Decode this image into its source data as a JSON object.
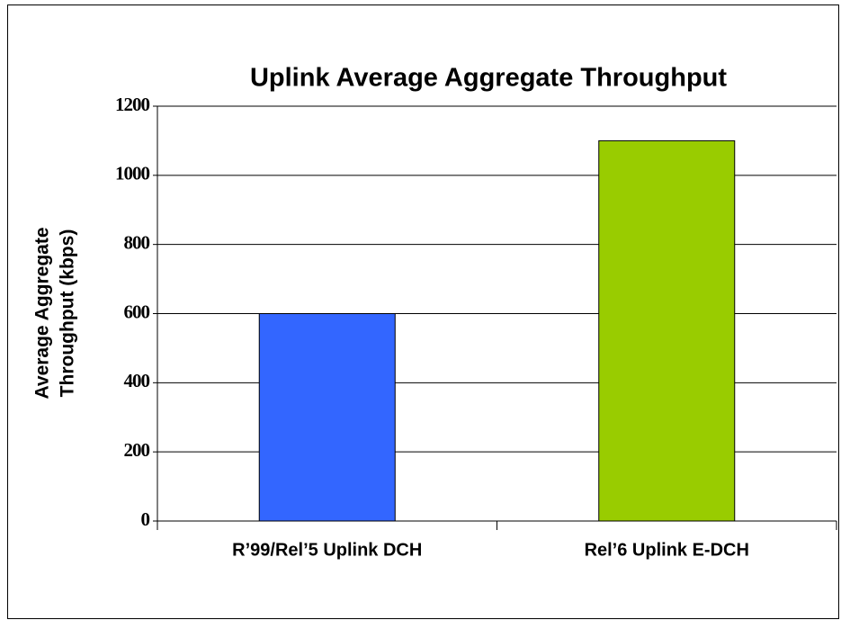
{
  "chart_data": {
    "type": "bar",
    "title": "Uplink Average Aggregate Throughput",
    "ylabel": [
      "Average Aggregate",
      "Throughput (kbps)"
    ],
    "categories": [
      "R’99/Rel’5 Uplink DCH",
      "Rel’6 Uplink E-DCH"
    ],
    "values": [
      600,
      1100
    ],
    "colors": [
      "#3366ff",
      "#99cc00"
    ],
    "ylim": [
      0,
      1200
    ],
    "yticks": [
      0,
      200,
      400,
      600,
      800,
      1000,
      1200
    ],
    "grid": true
  }
}
